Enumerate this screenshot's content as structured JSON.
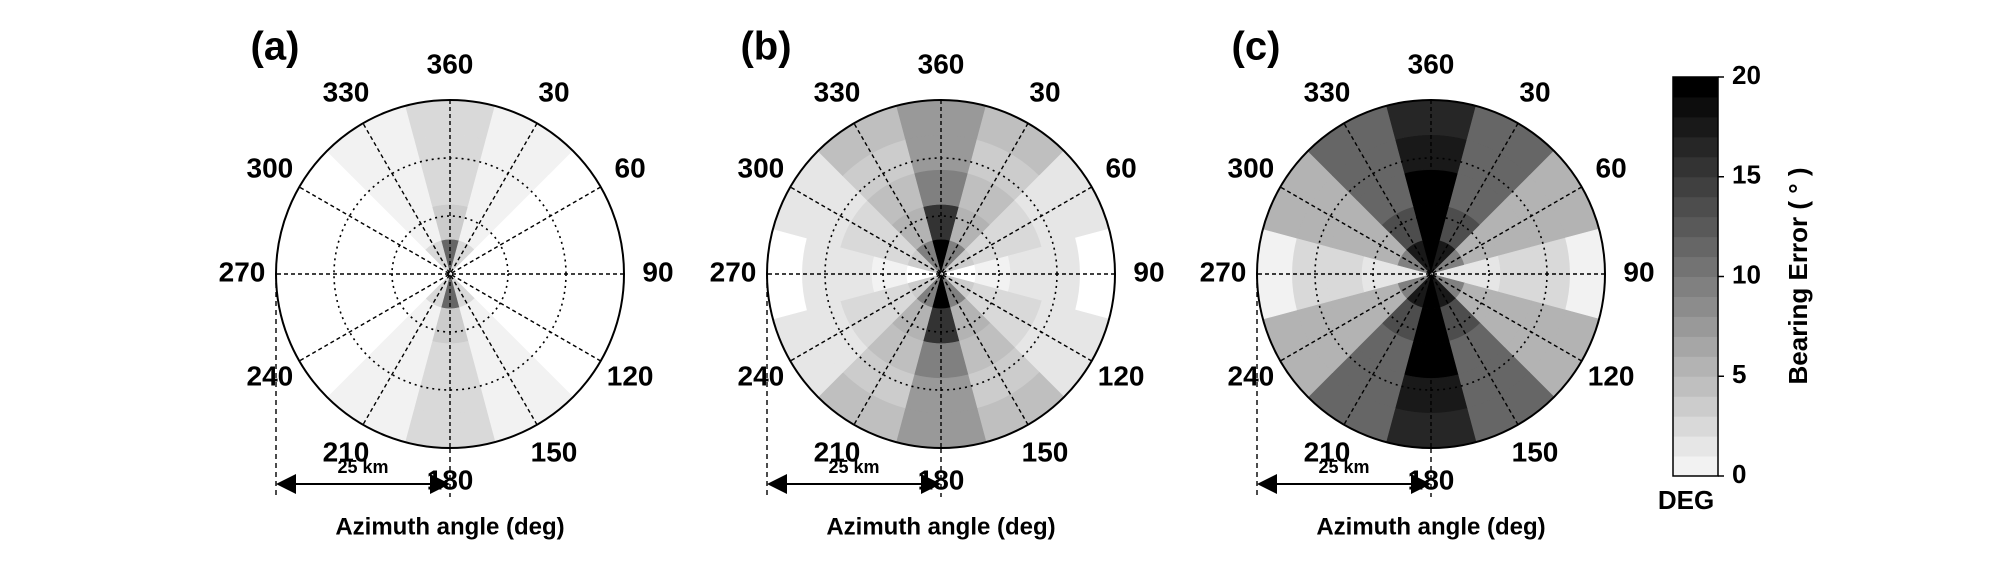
{
  "chart_data": [
    {
      "type": "polar_heatmap",
      "title": "(a)",
      "theta_ticks": [
        360,
        30,
        60,
        90,
        120,
        150,
        180,
        210,
        240,
        270,
        300,
        330
      ],
      "rlim": [
        0,
        25
      ],
      "r_bins": [
        0,
        5,
        10,
        15,
        20,
        25
      ],
      "values": [
        [
          12,
          4,
          3,
          3,
          3
        ],
        [
          3,
          1,
          1,
          1,
          1
        ],
        [
          0,
          0,
          0,
          0,
          0
        ],
        [
          0,
          0,
          0,
          0,
          0
        ],
        [
          0,
          0,
          0,
          0,
          0
        ],
        [
          3,
          1,
          1,
          1,
          1
        ],
        [
          12,
          4,
          3,
          3,
          3
        ],
        [
          3,
          1,
          1,
          1,
          1
        ],
        [
          0,
          0,
          0,
          0,
          0
        ],
        [
          0,
          0,
          0,
          0,
          0
        ],
        [
          0,
          0,
          0,
          0,
          0
        ],
        [
          3,
          1,
          1,
          1,
          1
        ]
      ],
      "scale_label": "25 km",
      "xlabel": "Azimuth angle (deg)"
    },
    {
      "type": "polar_heatmap",
      "title": "(b)",
      "theta_ticks": [
        360,
        30,
        60,
        90,
        120,
        150,
        180,
        210,
        240,
        270,
        300,
        330
      ],
      "rlim": [
        0,
        25
      ],
      "r_bins": [
        0,
        5,
        10,
        15,
        20,
        25
      ],
      "values": [
        [
          20,
          16,
          10,
          8,
          8
        ],
        [
          10,
          6,
          5,
          4,
          5
        ],
        [
          4,
          3,
          3,
          2,
          2
        ],
        [
          0,
          1,
          2,
          2,
          0
        ],
        [
          4,
          3,
          3,
          2,
          2
        ],
        [
          10,
          6,
          5,
          4,
          5
        ],
        [
          20,
          16,
          10,
          8,
          8
        ],
        [
          10,
          6,
          5,
          4,
          5
        ],
        [
          4,
          3,
          3,
          2,
          2
        ],
        [
          0,
          1,
          2,
          2,
          0
        ],
        [
          4,
          3,
          3,
          2,
          2
        ],
        [
          10,
          6,
          5,
          4,
          5
        ]
      ],
      "scale_label": "25 km",
      "xlabel": "Azimuth angle (deg)"
    },
    {
      "type": "polar_heatmap",
      "title": "(c)",
      "theta_ticks": [
        360,
        30,
        60,
        90,
        120,
        150,
        180,
        210,
        240,
        270,
        300,
        330
      ],
      "rlim": [
        0,
        25
      ],
      "r_bins": [
        0,
        5,
        10,
        15,
        20,
        25
      ],
      "values": [
        [
          20,
          20,
          20,
          18,
          17
        ],
        [
          18,
          14,
          12,
          12,
          12
        ],
        [
          10,
          6,
          6,
          6,
          6
        ],
        [
          2,
          2,
          3,
          3,
          1
        ],
        [
          10,
          6,
          6,
          6,
          6
        ],
        [
          18,
          14,
          12,
          12,
          12
        ],
        [
          20,
          20,
          20,
          18,
          17
        ],
        [
          18,
          14,
          12,
          12,
          12
        ],
        [
          10,
          6,
          6,
          6,
          6
        ],
        [
          2,
          2,
          3,
          3,
          1
        ],
        [
          10,
          6,
          6,
          6,
          6
        ],
        [
          18,
          14,
          12,
          12,
          12
        ]
      ],
      "scale_label": "25 km",
      "xlabel": "Azimuth angle (deg)"
    }
  ],
  "colorbar": {
    "clim": [
      0,
      20
    ],
    "ticks": [
      0,
      5,
      10,
      15,
      20
    ],
    "label": "Bearing Error ( ° )",
    "unit": "DEG"
  }
}
